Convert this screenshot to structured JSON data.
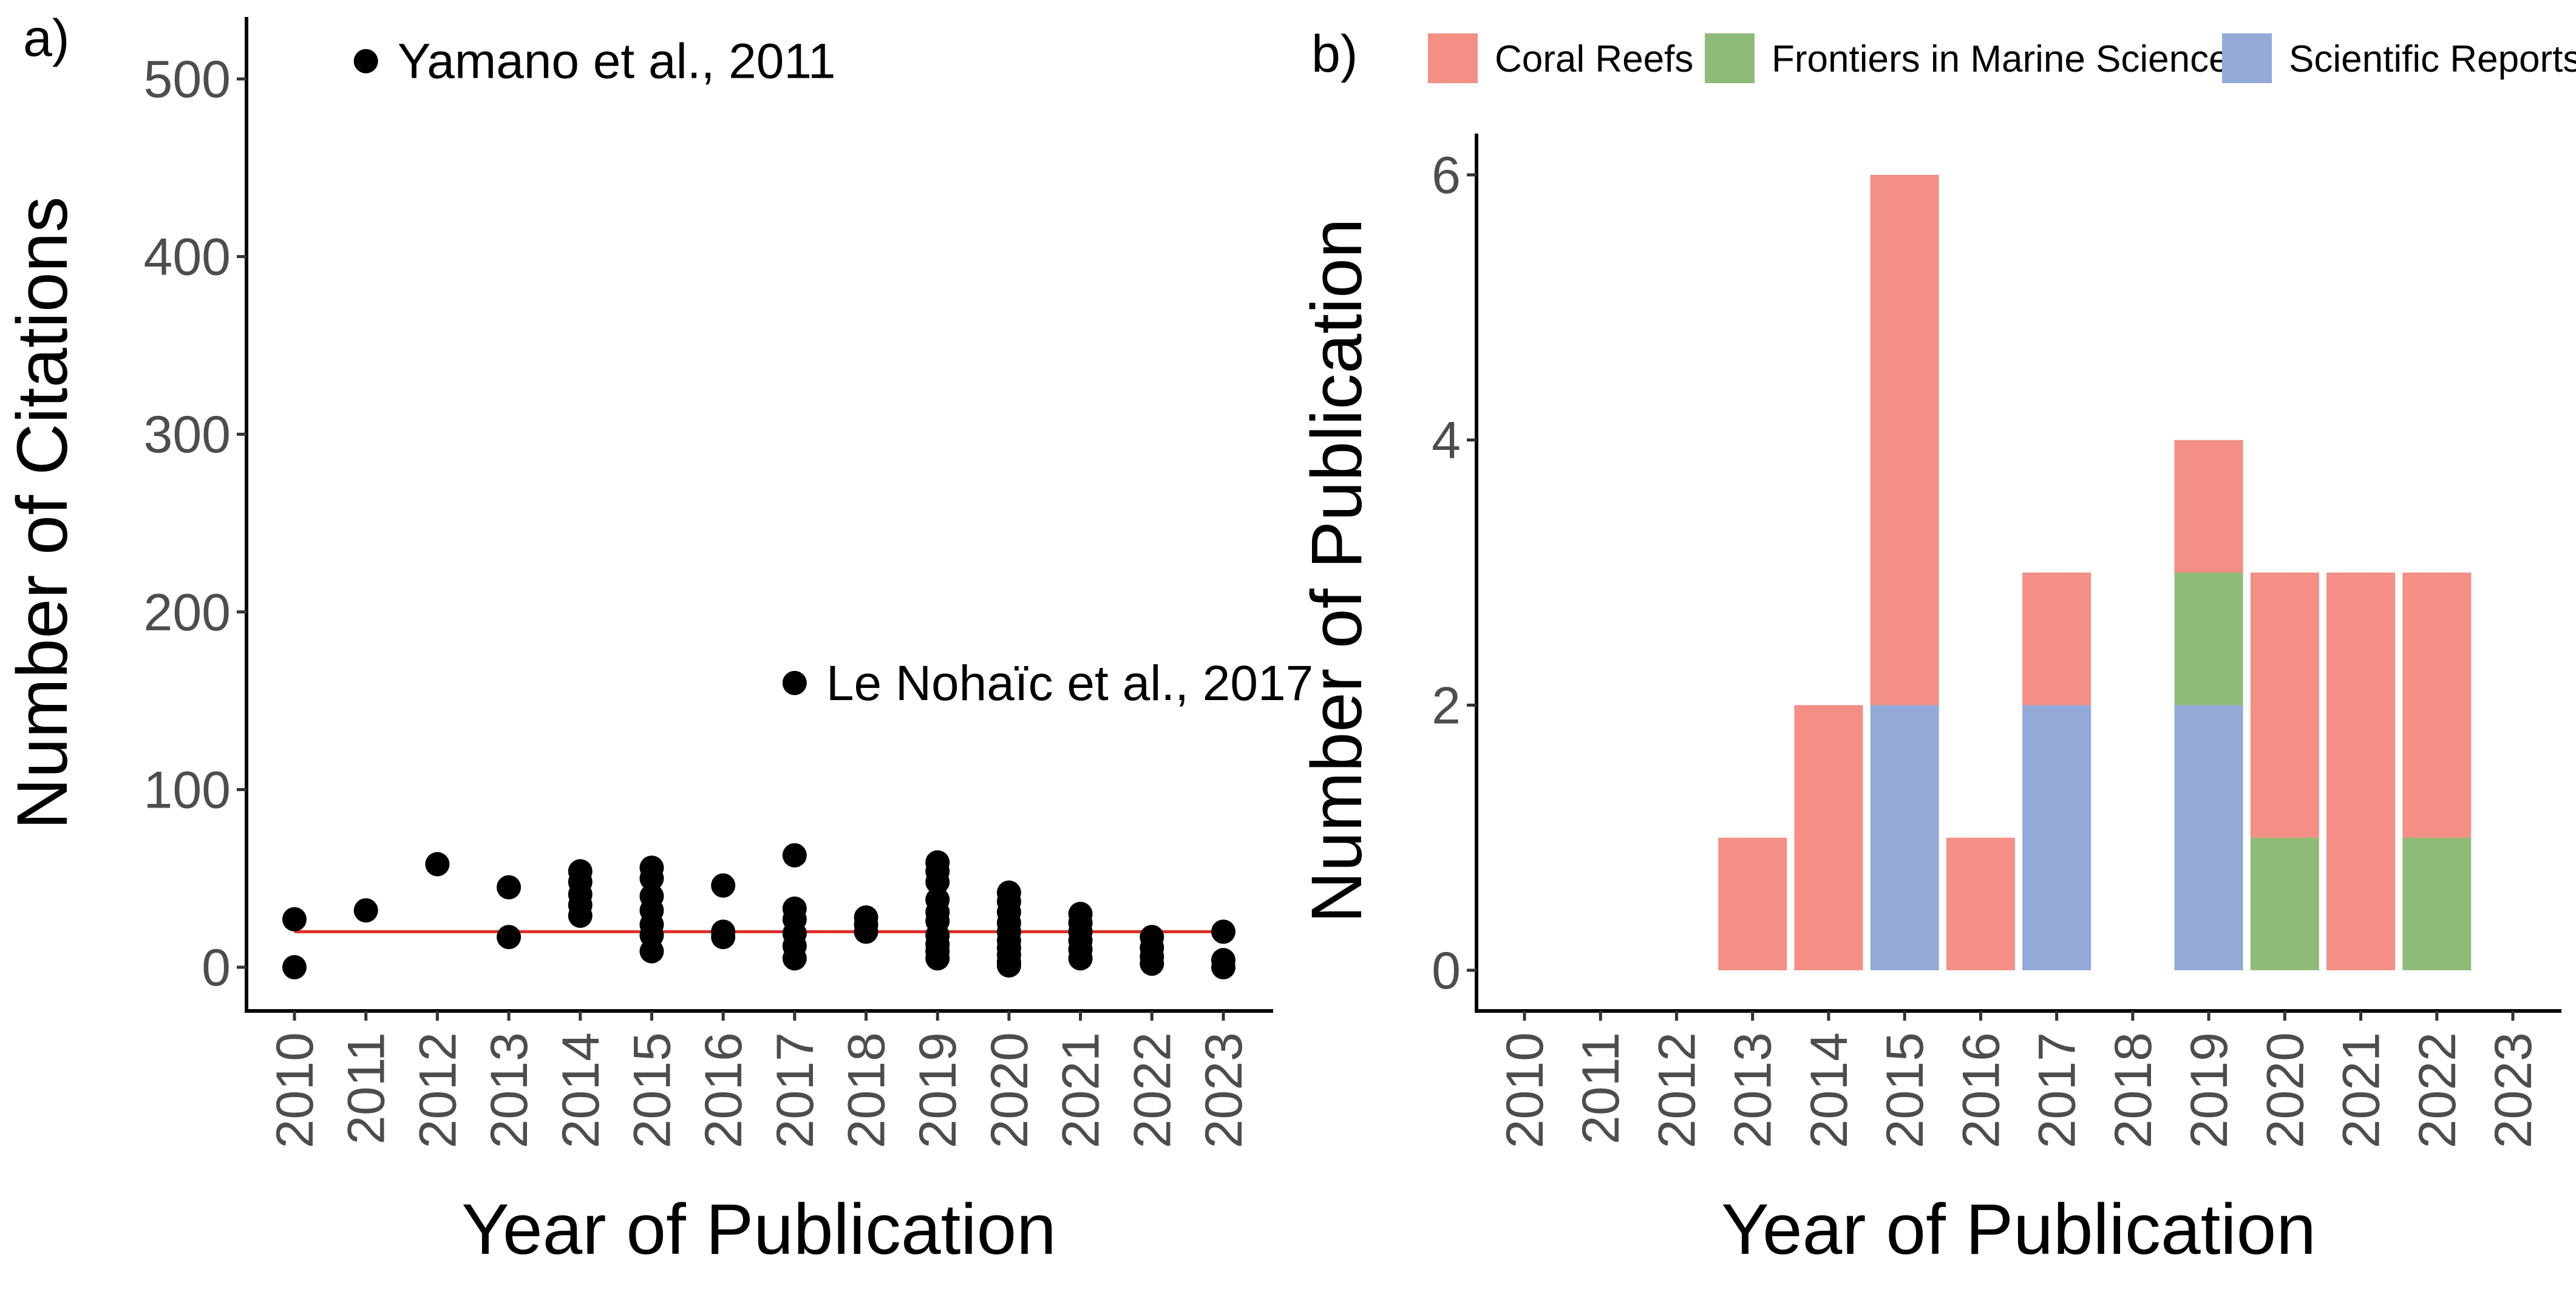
{
  "panel_a": {
    "label": "a)",
    "annotations": [
      {
        "text": "Yamano et al., 2011",
        "x": 2011,
        "y": 510
      },
      {
        "text": "Le Nohaïc et al., 2017",
        "x": 2017,
        "y": 160
      }
    ]
  },
  "panel_b": {
    "label": "b)"
  },
  "chart_data": [
    {
      "type": "scatter",
      "title": "",
      "xlabel": "Year of Publication",
      "ylabel": "Number of Citations",
      "xlim": [
        2010,
        2023
      ],
      "ylim": [
        0,
        510
      ],
      "x_ticks": [
        "2010",
        "2011",
        "2012",
        "2013",
        "2014",
        "2015",
        "2016",
        "2017",
        "2018",
        "2019",
        "2020",
        "2021",
        "2022",
        "2023"
      ],
      "y_ticks": [
        0,
        100,
        200,
        300,
        400,
        500
      ],
      "grid": false,
      "point_color": "#000000",
      "reference_line": {
        "y": 20,
        "x_from": 2010,
        "x_to": 2023,
        "color": "#e0302b"
      },
      "points": [
        [
          2010,
          27
        ],
        [
          2010,
          0
        ],
        [
          2011,
          510
        ],
        [
          2011,
          32
        ],
        [
          2012,
          58
        ],
        [
          2013,
          45
        ],
        [
          2013,
          17
        ],
        [
          2014,
          54
        ],
        [
          2014,
          48
        ],
        [
          2014,
          41
        ],
        [
          2014,
          35
        ],
        [
          2014,
          29
        ],
        [
          2015,
          56
        ],
        [
          2015,
          50
        ],
        [
          2015,
          40
        ],
        [
          2015,
          32
        ],
        [
          2015,
          24
        ],
        [
          2015,
          18
        ],
        [
          2015,
          9
        ],
        [
          2016,
          46
        ],
        [
          2016,
          20
        ],
        [
          2016,
          17
        ],
        [
          2017,
          160
        ],
        [
          2017,
          63
        ],
        [
          2017,
          33
        ],
        [
          2017,
          27
        ],
        [
          2017,
          19
        ],
        [
          2017,
          12
        ],
        [
          2017,
          5
        ],
        [
          2018,
          28
        ],
        [
          2018,
          24
        ],
        [
          2018,
          20
        ],
        [
          2019,
          59
        ],
        [
          2019,
          54
        ],
        [
          2019,
          48
        ],
        [
          2019,
          38
        ],
        [
          2019,
          31
        ],
        [
          2019,
          26
        ],
        [
          2019,
          18
        ],
        [
          2019,
          13
        ],
        [
          2019,
          9
        ],
        [
          2019,
          5
        ],
        [
          2020,
          42
        ],
        [
          2020,
          37
        ],
        [
          2020,
          31
        ],
        [
          2020,
          25
        ],
        [
          2020,
          20
        ],
        [
          2020,
          15
        ],
        [
          2020,
          11
        ],
        [
          2020,
          7
        ],
        [
          2020,
          3
        ],
        [
          2020,
          1
        ],
        [
          2021,
          30
        ],
        [
          2021,
          25
        ],
        [
          2021,
          20
        ],
        [
          2021,
          15
        ],
        [
          2021,
          10
        ],
        [
          2021,
          5
        ],
        [
          2022,
          17
        ],
        [
          2022,
          11
        ],
        [
          2022,
          6
        ],
        [
          2022,
          2
        ],
        [
          2023,
          20
        ],
        [
          2023,
          4
        ],
        [
          2023,
          0
        ]
      ]
    },
    {
      "type": "bar",
      "stacked": true,
      "title": "",
      "xlabel": "Year of Publication",
      "ylabel": "Number of Publication",
      "categories": [
        "2010",
        "2011",
        "2012",
        "2013",
        "2014",
        "2015",
        "2016",
        "2017",
        "2018",
        "2019",
        "2020",
        "2021",
        "2022",
        "2023"
      ],
      "ylim": [
        0,
        6.1
      ],
      "y_ticks": [
        0,
        2,
        4,
        6
      ],
      "grid": false,
      "legend_position": "top",
      "series": [
        {
          "name": "Scientific Reports",
          "color": "#93a9d7",
          "values": [
            0,
            0,
            0,
            0,
            0,
            2,
            0,
            2,
            0,
            2,
            0,
            0,
            0,
            0
          ]
        },
        {
          "name": "Frontiers in Marine Science",
          "color": "#8fbb78",
          "values": [
            0,
            0,
            0,
            0,
            0,
            0,
            0,
            0,
            0,
            1,
            1,
            0,
            1,
            0
          ]
        },
        {
          "name": "Coral Reefs",
          "color": "#f38f84",
          "values": [
            0,
            0,
            0,
            1,
            2,
            4,
            1,
            1,
            0,
            1,
            2,
            3,
            2,
            0
          ]
        }
      ],
      "legend_order": [
        "Coral Reefs",
        "Frontiers in Marine Science",
        "Scientific Reports"
      ]
    }
  ]
}
